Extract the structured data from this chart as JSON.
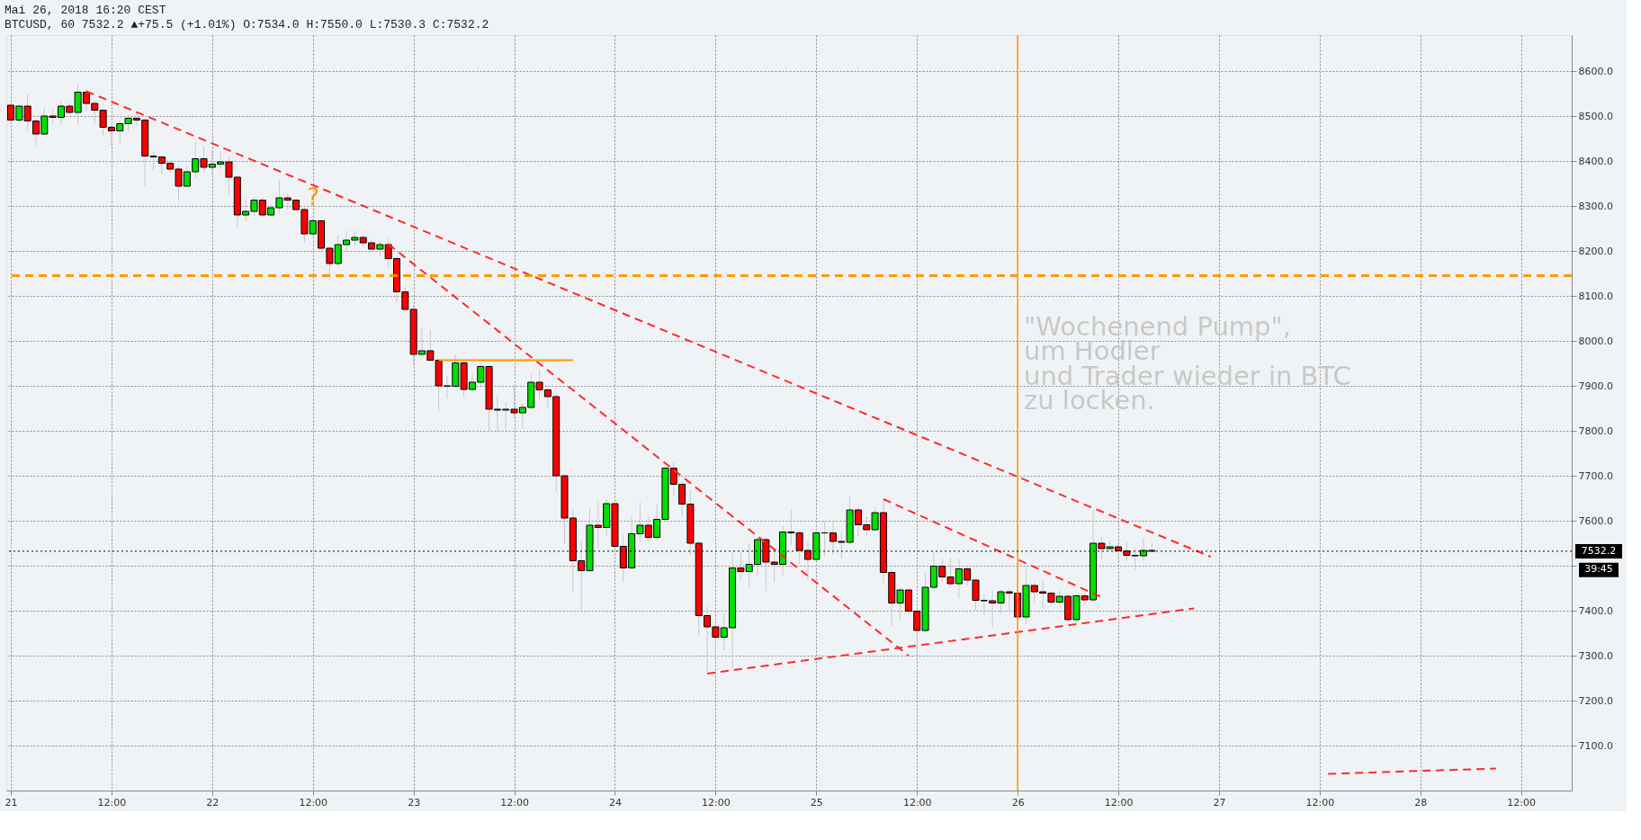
{
  "chart_data": {
    "type": "candlestick",
    "title": "Mai 26, 2018 16:20 CEST",
    "subtitle": "BTCUSD, 60 7532.2 ▲+75.5 (+1.01%) O:7534.0 H:7550.0 L:7530.3 C:7532.2",
    "x": [
      "2018-05-21T00:00",
      "2018-05-21T01:00",
      "2018-05-21T02:00",
      "2018-05-21T03:00",
      "2018-05-21T04:00",
      "2018-05-21T05:00",
      "2018-05-21T06:00",
      "2018-05-21T07:00",
      "2018-05-21T08:00",
      "2018-05-21T09:00",
      "2018-05-21T10:00",
      "2018-05-21T11:00",
      "2018-05-21T12:00",
      "2018-05-21T13:00",
      "2018-05-21T14:00",
      "2018-05-21T15:00",
      "2018-05-21T16:00",
      "2018-05-21T17:00",
      "2018-05-21T18:00",
      "2018-05-21T19:00",
      "2018-05-21T20:00",
      "2018-05-21T21:00",
      "2018-05-21T22:00",
      "2018-05-21T23:00",
      "2018-05-22T00:00",
      "2018-05-22T01:00",
      "2018-05-22T02:00",
      "2018-05-22T03:00",
      "2018-05-22T04:00",
      "2018-05-22T05:00",
      "2018-05-22T06:00",
      "2018-05-22T07:00",
      "2018-05-22T08:00",
      "2018-05-22T09:00",
      "2018-05-22T10:00",
      "2018-05-22T11:00",
      "2018-05-22T12:00",
      "2018-05-22T13:00",
      "2018-05-22T14:00",
      "2018-05-22T15:00",
      "2018-05-22T16:00",
      "2018-05-22T17:00",
      "2018-05-22T18:00",
      "2018-05-22T19:00",
      "2018-05-22T20:00",
      "2018-05-22T21:00",
      "2018-05-22T22:00",
      "2018-05-22T23:00",
      "2018-05-23T00:00",
      "2018-05-23T01:00",
      "2018-05-23T02:00",
      "2018-05-23T03:00",
      "2018-05-23T04:00",
      "2018-05-23T05:00",
      "2018-05-23T06:00",
      "2018-05-23T07:00",
      "2018-05-23T08:00",
      "2018-05-23T09:00",
      "2018-05-23T10:00",
      "2018-05-23T11:00",
      "2018-05-23T12:00",
      "2018-05-23T13:00",
      "2018-05-23T14:00",
      "2018-05-23T15:00",
      "2018-05-23T16:00",
      "2018-05-23T17:00",
      "2018-05-23T18:00",
      "2018-05-23T19:00",
      "2018-05-23T20:00",
      "2018-05-23T21:00",
      "2018-05-23T22:00",
      "2018-05-23T23:00",
      "2018-05-24T00:00",
      "2018-05-24T01:00",
      "2018-05-24T02:00",
      "2018-05-24T03:00",
      "2018-05-24T04:00",
      "2018-05-24T05:00",
      "2018-05-24T06:00",
      "2018-05-24T07:00",
      "2018-05-24T08:00",
      "2018-05-24T09:00",
      "2018-05-24T10:00",
      "2018-05-24T11:00",
      "2018-05-24T12:00",
      "2018-05-24T13:00",
      "2018-05-24T14:00",
      "2018-05-24T15:00",
      "2018-05-24T16:00",
      "2018-05-24T17:00",
      "2018-05-24T18:00",
      "2018-05-24T19:00",
      "2018-05-24T20:00",
      "2018-05-24T21:00",
      "2018-05-24T22:00",
      "2018-05-24T23:00",
      "2018-05-25T00:00",
      "2018-05-25T01:00",
      "2018-05-25T02:00",
      "2018-05-25T03:00",
      "2018-05-25T04:00",
      "2018-05-25T05:00",
      "2018-05-25T06:00",
      "2018-05-25T07:00",
      "2018-05-25T08:00",
      "2018-05-25T09:00",
      "2018-05-25T10:00",
      "2018-05-25T11:00",
      "2018-05-25T12:00",
      "2018-05-25T13:00",
      "2018-05-25T14:00",
      "2018-05-25T15:00",
      "2018-05-25T16:00",
      "2018-05-25T17:00",
      "2018-05-25T18:00",
      "2018-05-25T19:00",
      "2018-05-25T20:00",
      "2018-05-25T21:00",
      "2018-05-25T22:00",
      "2018-05-25T23:00",
      "2018-05-26T00:00",
      "2018-05-26T01:00",
      "2018-05-26T02:00",
      "2018-05-26T03:00",
      "2018-05-26T04:00",
      "2018-05-26T05:00",
      "2018-05-26T06:00",
      "2018-05-26T07:00",
      "2018-05-26T08:00",
      "2018-05-26T09:00",
      "2018-05-26T10:00",
      "2018-05-26T11:00",
      "2018-05-26T12:00",
      "2018-05-26T13:00",
      "2018-05-26T14:00",
      "2018-05-26T15:00",
      "2018-05-26T16:00"
    ],
    "ohlc": [
      [
        8524,
        8530,
        8483,
        8491
      ],
      [
        8491,
        8525,
        8488,
        8522
      ],
      [
        8522,
        8549,
        8467,
        8489
      ],
      [
        8489,
        8495,
        8435,
        8460
      ],
      [
        8460,
        8518,
        8458,
        8500
      ],
      [
        8500,
        8516,
        8482,
        8497
      ],
      [
        8497,
        8531,
        8480,
        8522
      ],
      [
        8522,
        8530,
        8503,
        8508
      ],
      [
        8508,
        8570,
        8480,
        8553
      ],
      [
        8553,
        8559,
        8510,
        8528
      ],
      [
        8528,
        8534,
        8483,
        8513
      ],
      [
        8513,
        8514,
        8456,
        8475
      ],
      [
        8475,
        8479,
        8432,
        8467
      ],
      [
        8467,
        8491,
        8440,
        8483
      ],
      [
        8483,
        8503,
        8467,
        8495
      ],
      [
        8495,
        8510,
        8479,
        8491
      ],
      [
        8491,
        8495,
        8344,
        8411
      ],
      [
        8411,
        8422,
        8378,
        8409
      ],
      [
        8409,
        8413,
        8370,
        8395
      ],
      [
        8395,
        8401,
        8374,
        8382
      ],
      [
        8382,
        8390,
        8312,
        8344
      ],
      [
        8344,
        8390,
        8343,
        8376
      ],
      [
        8376,
        8444,
        8362,
        8405
      ],
      [
        8405,
        8432,
        8374,
        8386
      ],
      [
        8386,
        8425,
        8368,
        8393
      ],
      [
        8393,
        8421,
        8382,
        8398
      ],
      [
        8398,
        8409,
        8327,
        8364
      ],
      [
        8364,
        8366,
        8253,
        8280
      ],
      [
        8280,
        8316,
        8265,
        8288
      ],
      [
        8288,
        8321,
        8277,
        8313
      ],
      [
        8313,
        8319,
        8277,
        8280
      ],
      [
        8280,
        8304,
        8277,
        8296
      ],
      [
        8296,
        8357,
        8284,
        8318
      ],
      [
        8318,
        8326,
        8292,
        8313
      ],
      [
        8313,
        8315,
        8290,
        8292
      ],
      [
        8292,
        8296,
        8218,
        8238
      ],
      [
        8238,
        8273,
        8234,
        8267
      ],
      [
        8267,
        8271,
        8195,
        8206
      ],
      [
        8206,
        8210,
        8134,
        8172
      ],
      [
        8172,
        8234,
        8163,
        8214
      ],
      [
        8214,
        8245,
        8199,
        8224
      ],
      [
        8224,
        8245,
        8210,
        8230
      ],
      [
        8230,
        8235,
        8209,
        8218
      ],
      [
        8218,
        8226,
        8199,
        8204
      ],
      [
        8204,
        8222,
        8187,
        8214
      ],
      [
        8214,
        8227,
        8162,
        8183
      ],
      [
        8183,
        8187,
        8086,
        8109
      ],
      [
        8109,
        8121,
        8062,
        8070
      ],
      [
        8070,
        8078,
        7945,
        7970
      ],
      [
        7970,
        8029,
        7969,
        7978
      ],
      [
        7978,
        8023,
        7953,
        7957
      ],
      [
        7957,
        7961,
        7844,
        7900
      ],
      [
        7900,
        7922,
        7871,
        7899
      ],
      [
        7899,
        7969,
        7895,
        7951
      ],
      [
        7951,
        7953,
        7875,
        7892
      ],
      [
        7892,
        7926,
        7887,
        7908
      ],
      [
        7908,
        7951,
        7902,
        7943
      ],
      [
        7943,
        7945,
        7797,
        7848
      ],
      [
        7848,
        7877,
        7797,
        7846
      ],
      [
        7846,
        7862,
        7801,
        7848
      ],
      [
        7848,
        7899,
        7828,
        7840
      ],
      [
        7840,
        7860,
        7805,
        7852
      ],
      [
        7852,
        7926,
        7848,
        7908
      ],
      [
        7908,
        7936,
        7871,
        7891
      ],
      [
        7891,
        7898,
        7851,
        7876
      ],
      [
        7876,
        7883,
        7663,
        7700
      ],
      [
        7700,
        7702,
        7550,
        7606
      ],
      [
        7606,
        7624,
        7440,
        7511
      ],
      [
        7511,
        7554,
        7403,
        7489
      ],
      [
        7489,
        7626,
        7487,
        7590
      ],
      [
        7590,
        7644,
        7538,
        7585
      ],
      [
        7585,
        7648,
        7565,
        7638
      ],
      [
        7638,
        7640,
        7534,
        7543
      ],
      [
        7543,
        7569,
        7463,
        7495
      ],
      [
        7495,
        7609,
        7493,
        7571
      ],
      [
        7571,
        7641,
        7554,
        7590
      ],
      [
        7590,
        7609,
        7554,
        7563
      ],
      [
        7563,
        7637,
        7561,
        7603
      ],
      [
        7603,
        7720,
        7601,
        7717
      ],
      [
        7717,
        7730,
        7657,
        7681
      ],
      [
        7681,
        7687,
        7609,
        7637
      ],
      [
        7637,
        7667,
        7522,
        7550
      ],
      [
        7550,
        7554,
        7346,
        7389
      ],
      [
        7389,
        7409,
        7260,
        7364
      ],
      [
        7364,
        7377,
        7295,
        7341
      ],
      [
        7341,
        7393,
        7311,
        7362
      ],
      [
        7362,
        7530,
        7272,
        7495
      ],
      [
        7495,
        7530,
        7468,
        7487
      ],
      [
        7487,
        7550,
        7452,
        7503
      ],
      [
        7503,
        7563,
        7476,
        7558
      ],
      [
        7558,
        7563,
        7444,
        7508
      ],
      [
        7508,
        7538,
        7464,
        7503
      ],
      [
        7503,
        7589,
        7476,
        7575
      ],
      [
        7575,
        7626,
        7546,
        7573
      ],
      [
        7573,
        7577,
        7503,
        7534
      ],
      [
        7534,
        7554,
        7468,
        7514
      ],
      [
        7514,
        7589,
        7511,
        7573
      ],
      [
        7573,
        7600,
        7522,
        7573
      ],
      [
        7573,
        7597,
        7524,
        7554
      ],
      [
        7554,
        7573,
        7516,
        7552
      ],
      [
        7552,
        7654,
        7548,
        7624
      ],
      [
        7624,
        7628,
        7565,
        7591
      ],
      [
        7591,
        7609,
        7567,
        7580
      ],
      [
        7580,
        7632,
        7577,
        7618
      ],
      [
        7618,
        7649,
        7461,
        7485
      ],
      [
        7485,
        7491,
        7366,
        7417
      ],
      [
        7417,
        7452,
        7381,
        7446
      ],
      [
        7446,
        7448,
        7393,
        7399
      ],
      [
        7399,
        7401,
        7320,
        7356
      ],
      [
        7356,
        7485,
        7350,
        7452
      ],
      [
        7452,
        7529,
        7444,
        7499
      ],
      [
        7499,
        7515,
        7464,
        7475
      ],
      [
        7475,
        7518,
        7452,
        7460
      ],
      [
        7460,
        7515,
        7427,
        7493
      ],
      [
        7493,
        7499,
        7456,
        7468
      ],
      [
        7468,
        7471,
        7401,
        7423
      ],
      [
        7423,
        7436,
        7391,
        7422
      ],
      [
        7422,
        7444,
        7362,
        7417
      ],
      [
        7417,
        7446,
        7393,
        7442
      ],
      [
        7442,
        7448,
        7401,
        7439
      ],
      [
        7439,
        7444,
        7380,
        7386
      ],
      [
        7386,
        7493,
        7370,
        7456
      ],
      [
        7456,
        7464,
        7417,
        7442
      ],
      [
        7442,
        7468,
        7405,
        7439
      ],
      [
        7439,
        7444,
        7413,
        7419
      ],
      [
        7419,
        7444,
        7413,
        7432
      ],
      [
        7432,
        7438,
        7374,
        7380
      ],
      [
        7380,
        7436,
        7375,
        7433
      ],
      [
        7433,
        7440,
        7414,
        7424
      ],
      [
        7424,
        7625,
        7419,
        7550
      ],
      [
        7550,
        7565,
        7515,
        7538
      ],
      [
        7538,
        7556,
        7535,
        7542
      ],
      [
        7542,
        7549,
        7509,
        7533
      ],
      [
        7533,
        7553,
        7512,
        7523
      ],
      [
        7523,
        7542,
        7490,
        7522
      ],
      [
        7522,
        7562,
        7512,
        7534
      ],
      [
        7534,
        7550,
        7530.3,
        7532.2
      ]
    ],
    "series": [
      {
        "type": "line",
        "color": "#ff2a2a",
        "line_style": "dashed",
        "x": [
          "2018-05-21T09:00",
          "2018-05-26T23:00"
        ],
        "values": [
          8555,
          7520
        ]
      },
      {
        "type": "line",
        "color": "#ff2a2a",
        "line_style": "dashed",
        "x": [
          "2018-05-22T21:00",
          "2018-05-25T11:00"
        ],
        "values": [
          8215,
          7300
        ]
      },
      {
        "type": "line",
        "color": "#ff2a2a",
        "line_style": "dashed",
        "x": [
          "2018-05-25T08:00",
          "2018-05-26T10:00"
        ],
        "values": [
          7648,
          7430
        ]
      },
      {
        "type": "line",
        "color": "#ff2a2a",
        "line_style": "dashed",
        "x": [
          "2018-05-24T11:00",
          "2018-05-26T21:00"
        ],
        "values": [
          7260,
          7405
        ]
      },
      {
        "type": "line",
        "color": "#ff2a2a",
        "line_style": "dashed",
        "x": [
          "2018-05-27T13:00",
          "2018-05-28T09:00"
        ],
        "values": [
          7037,
          7049
        ]
      },
      {
        "type": "line",
        "color": "#ff9800",
        "line_style": "solid",
        "x": [
          "2018-05-23T03:00",
          "2018-05-23T19:00"
        ],
        "values": [
          7957,
          7957
        ]
      }
    ],
    "ref_lines": [
      {
        "axis": "y",
        "value": 8145,
        "color": "#ff9800",
        "line_style": "dashed"
      },
      {
        "axis": "x",
        "value": "2018-05-26T00:00",
        "color": "#ff9800",
        "line_style": "solid"
      },
      {
        "axis": "y",
        "value": 7532.2,
        "label": "7532.2",
        "color": "#000000",
        "line_style": "dotted"
      }
    ],
    "annotations": [
      "\"Wochenend Pump\",\num Hodler\nund Trader wieder in BTC\nzu locken.",
      "?",
      "39:45"
    ],
    "xlim": [
      "2018-05-21T00:00",
      "2018-05-28T17:30"
    ],
    "xticks": [
      {
        "value": "2018-05-21T00:00",
        "label": "21"
      },
      {
        "value": "2018-05-21T12:00",
        "label": "12:00"
      },
      {
        "value": "2018-05-22T00:00",
        "label": "22"
      },
      {
        "value": "2018-05-22T12:00",
        "label": "12:00"
      },
      {
        "value": "2018-05-23T00:00",
        "label": "23"
      },
      {
        "value": "2018-05-23T12:00",
        "label": "12:00"
      },
      {
        "value": "2018-05-24T00:00",
        "label": "24"
      },
      {
        "value": "2018-05-24T12:00",
        "label": "12:00"
      },
      {
        "value": "2018-05-25T00:00",
        "label": "25"
      },
      {
        "value": "2018-05-25T12:00",
        "label": "12:00"
      },
      {
        "value": "2018-05-26T00:00",
        "label": "26"
      },
      {
        "value": "2018-05-26T12:00",
        "label": "12:00"
      },
      {
        "value": "2018-05-27T00:00",
        "label": "27"
      },
      {
        "value": "2018-05-27T12:00",
        "label": "12:00"
      },
      {
        "value": "2018-05-28T00:00",
        "label": "28"
      },
      {
        "value": "2018-05-28T12:00",
        "label": "12:00"
      }
    ],
    "ylim": [
      7000,
      8680
    ],
    "yticks": [
      {
        "value": 7100,
        "label": "7100.0"
      },
      {
        "value": 7200,
        "label": "7200.0"
      },
      {
        "value": 7300,
        "label": "7300.0"
      },
      {
        "value": 7400,
        "label": "7400.0"
      },
      {
        "value": 7500,
        "label": null
      },
      {
        "value": 7600,
        "label": "7600.0"
      },
      {
        "value": 7700,
        "label": "7700.0"
      },
      {
        "value": 7800,
        "label": "7800.0"
      },
      {
        "value": 7900,
        "label": "7900.0"
      },
      {
        "value": 8000,
        "label": "8000.0"
      },
      {
        "value": 8100,
        "label": "8100.0"
      },
      {
        "value": 8200,
        "label": "8200.0"
      },
      {
        "value": 8300,
        "label": "8300.0"
      },
      {
        "value": 8400,
        "label": "8400.0"
      },
      {
        "value": 8500,
        "label": "8500.0"
      },
      {
        "value": 8600,
        "label": "8600.0"
      }
    ],
    "grid": true
  }
}
